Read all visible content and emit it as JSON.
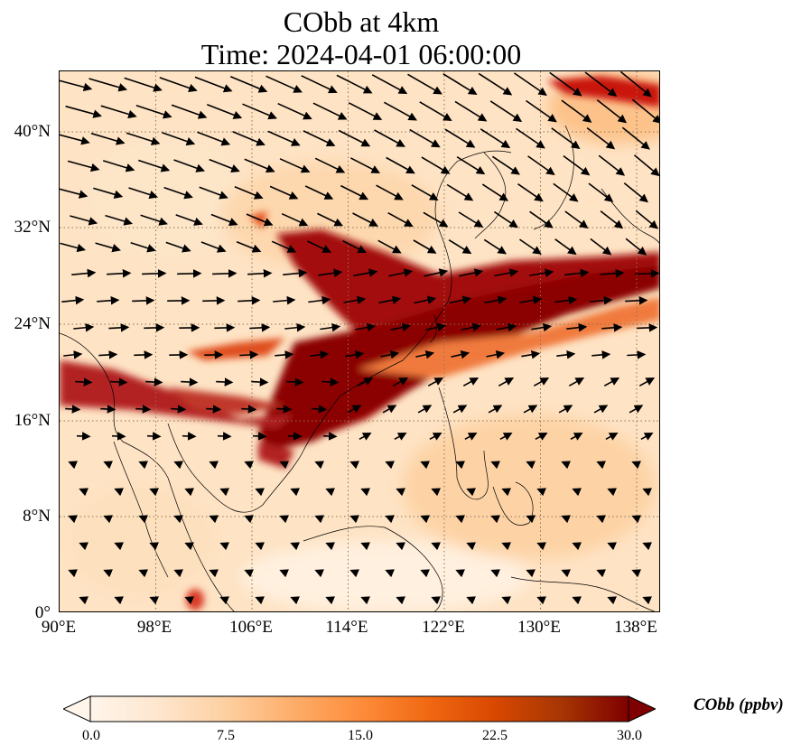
{
  "title": {
    "line1": "CObb at 4km",
    "line2": "Time: 2024-04-01 06:00:00"
  },
  "map": {
    "lon_range": [
      90,
      140
    ],
    "lat_range": [
      0,
      45
    ],
    "lat_ticks": [
      "0°",
      "8°N",
      "16°N",
      "24°N",
      "32°N",
      "40°N"
    ],
    "lon_ticks": [
      "90°E",
      "98°E",
      "106°E",
      "114°E",
      "122°E",
      "130°E",
      "138°E"
    ],
    "grid_color": "#8b7355",
    "field_description_color_low": "#fff5eb",
    "field_description_color_high": "#7f0000"
  },
  "colorbar": {
    "label": "CObb (ppbv)",
    "ticks": [
      "0.0",
      "7.5",
      "15.0",
      "22.5",
      "30.0"
    ],
    "min": 0,
    "max": 30,
    "colors": [
      "#fff5eb",
      "#fee6ce",
      "#fdd0a2",
      "#fdae6b",
      "#fd8d3c",
      "#f16913",
      "#d94801",
      "#a63603",
      "#7f0000"
    ]
  }
}
